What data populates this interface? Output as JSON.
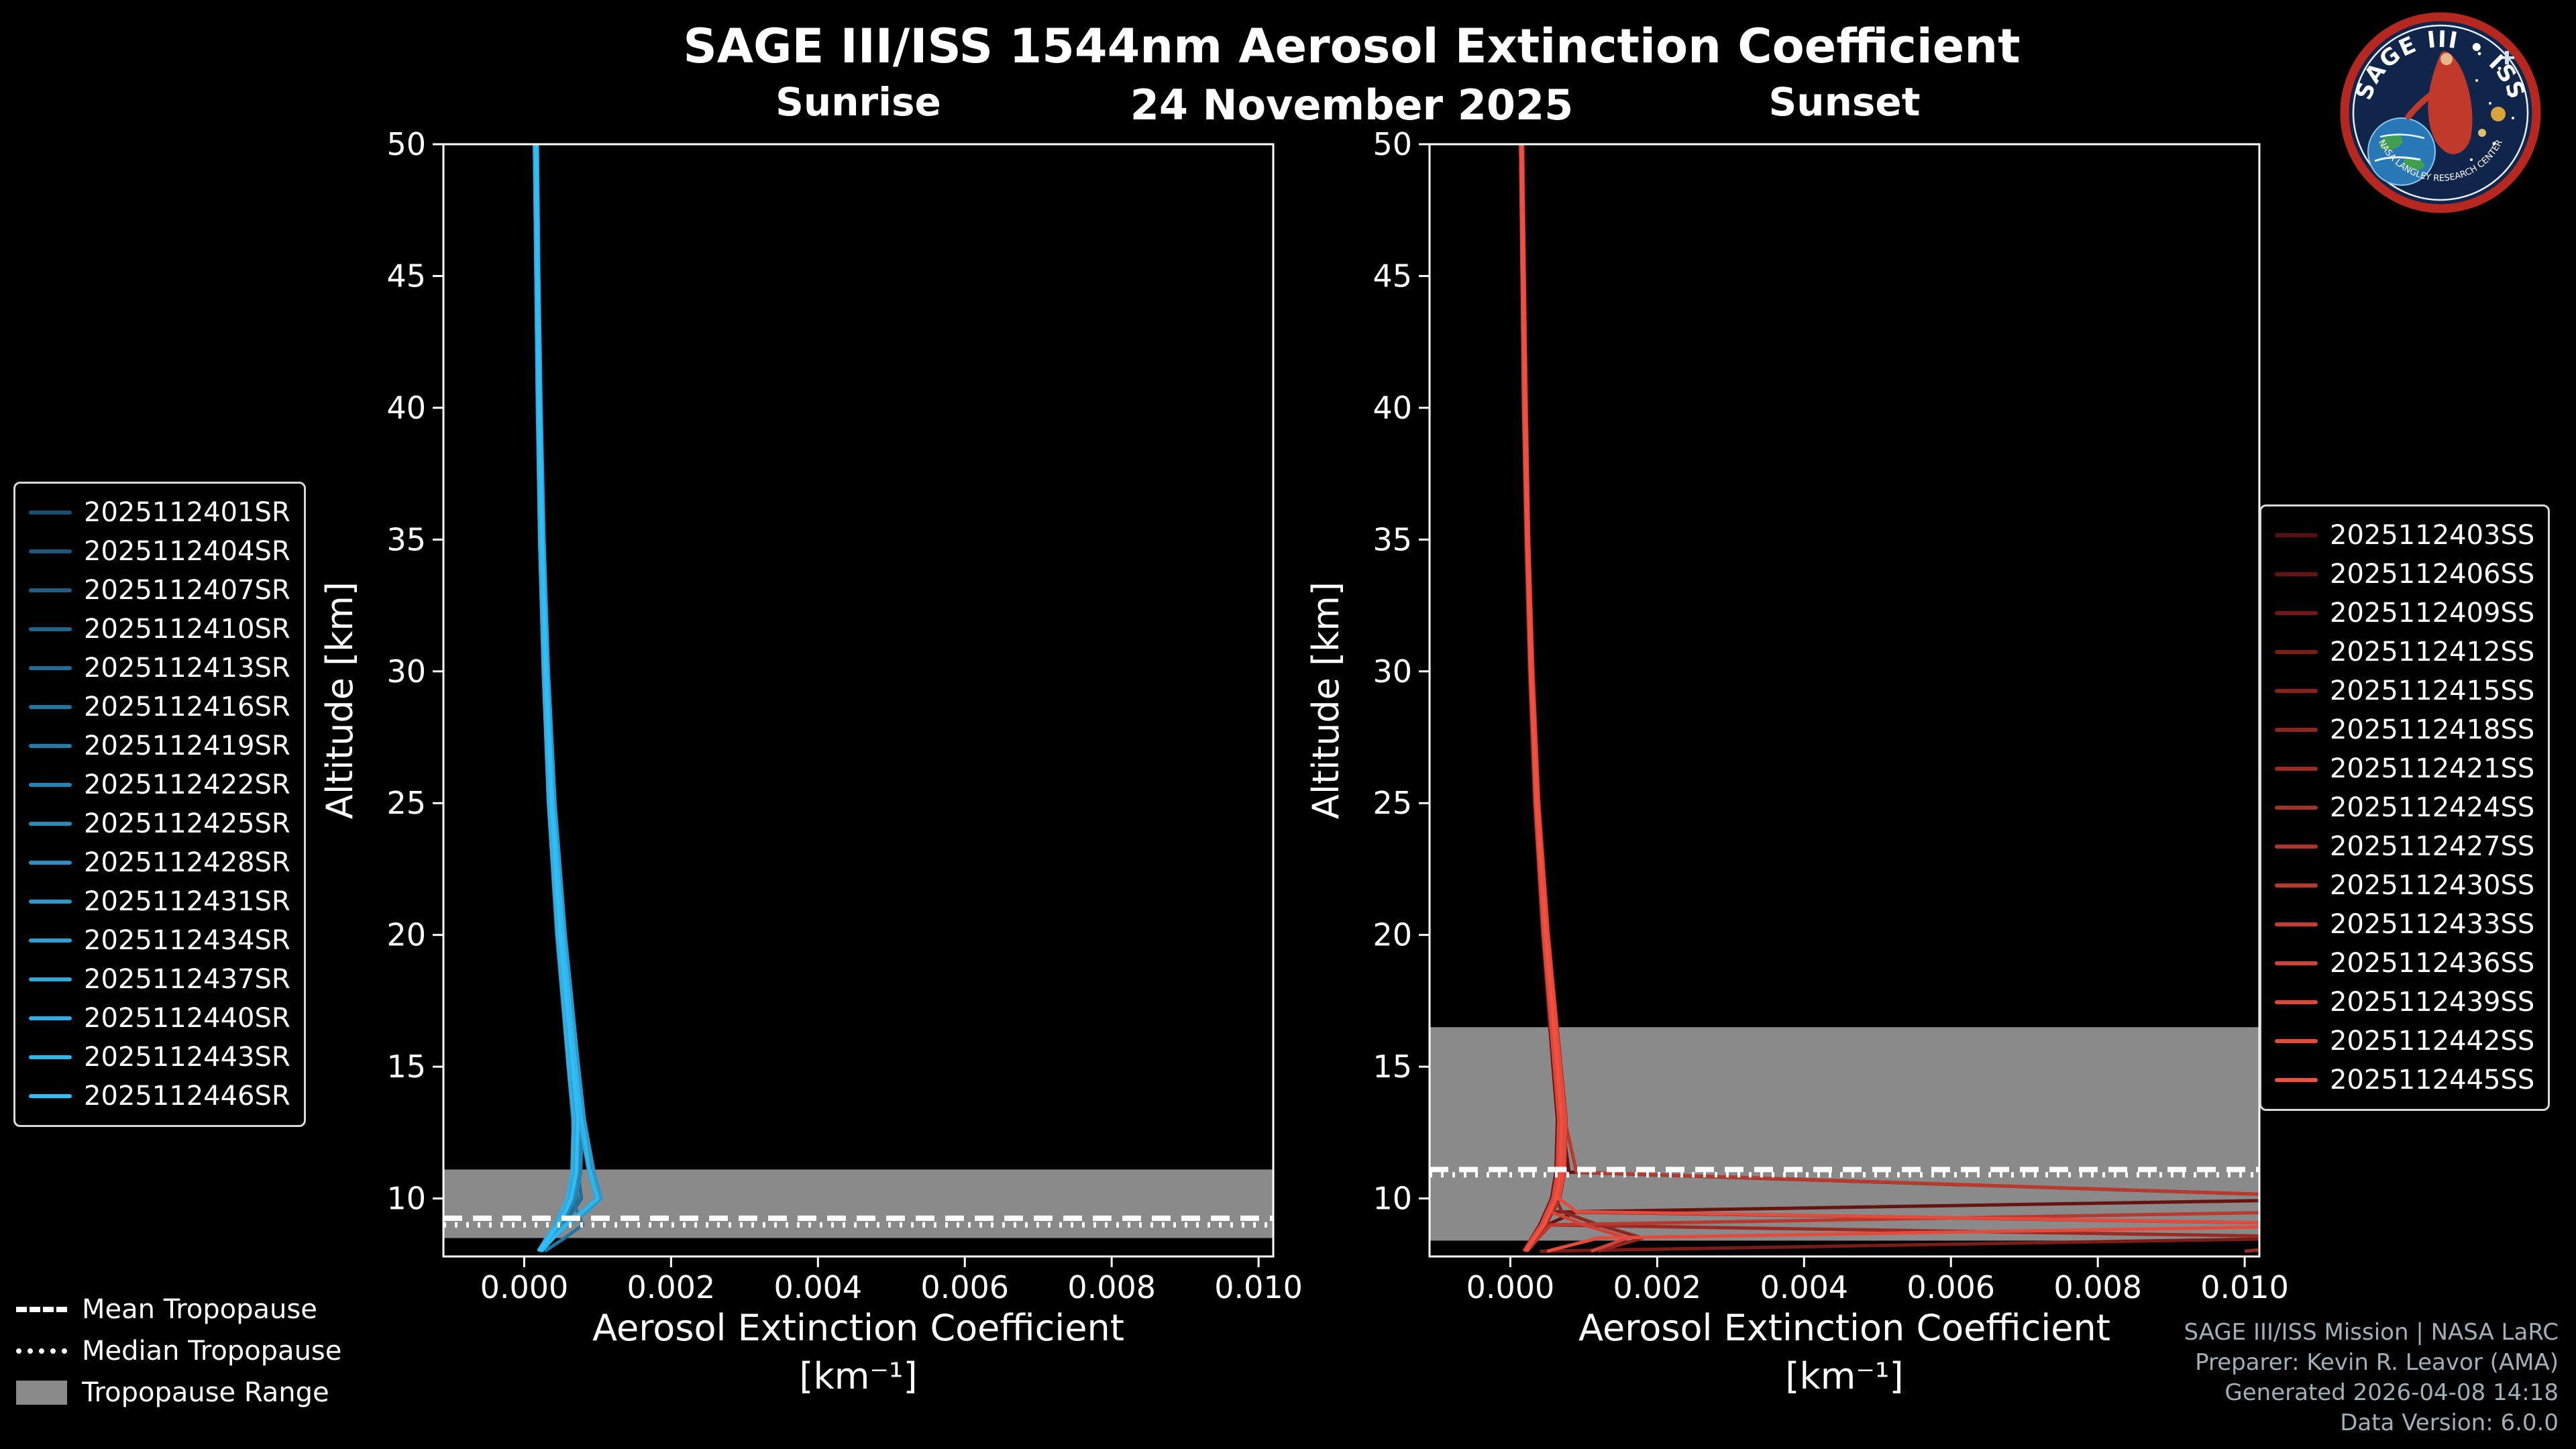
{
  "header": {
    "title": "SAGE III/ISS 1544nm Aerosol Extinction Coefficient",
    "date": "24 November 2025"
  },
  "logo": {
    "title": "SAGE III • ISS",
    "arc_bottom": "NASA LANGLEY RESEARCH CENTER"
  },
  "tropopause_legend": {
    "items": [
      {
        "style": "dashed",
        "label": "Mean Tropopause"
      },
      {
        "style": "dotted",
        "label": "Median Tropopause"
      },
      {
        "style": "patch",
        "label": "Tropopause Range"
      }
    ]
  },
  "footer": {
    "lines": [
      "SAGE III/ISS Mission | NASA LaRC",
      "Preparer: Kevin R. Leavor (AMA)",
      "Generated 2026-04-08 14:18",
      "Data Version: 6.0.0"
    ]
  },
  "chart_data": [
    {
      "id": "sunrise",
      "type": "line",
      "title": "Sunrise",
      "xlabel": "Aerosol Extinction Coefficient",
      "xlabel_units": "[km⁻¹]",
      "ylabel": "Altitude [km]",
      "xlim": [
        -0.0011,
        0.0102
      ],
      "ylim": [
        7.8,
        50
      ],
      "grid": false,
      "legend_position": "outside-left",
      "xticks": [
        0,
        0.002,
        0.004,
        0.006,
        0.008,
        0.01
      ],
      "xtick_labels": [
        "0.000",
        "0.002",
        "0.004",
        "0.006",
        "0.008",
        "0.010"
      ],
      "yticks": [
        10,
        15,
        20,
        25,
        30,
        35,
        40,
        45,
        50
      ],
      "ytick_labels": [
        "10",
        "15",
        "20",
        "25",
        "30",
        "35",
        "40",
        "45",
        "50"
      ],
      "tropopause": {
        "mean": 9.25,
        "median": 9.0,
        "range": [
          8.5,
          11.1
        ],
        "range_color": "#8a8a8a",
        "line_color": "#ffffff"
      },
      "altitudes": [
        50,
        45,
        40,
        35,
        30,
        25,
        20,
        15,
        13,
        11,
        10,
        9.5,
        9,
        8.5,
        8
      ],
      "series": [
        {
          "name": "2025112401SR",
          "color": "#1b4f72",
          "values": [
            0.00015,
            0.00017,
            0.00019,
            0.00022,
            0.00027,
            0.00034,
            0.00046,
            0.00062,
            0.00068,
            0.00066,
            0.00058,
            0.0005,
            0.00042,
            0.00031,
            0.0002
          ]
        },
        {
          "name": "2025112404SR",
          "color": "#1d567b",
          "values": [
            0.00016,
            0.00018,
            0.00021,
            0.00024,
            0.00029,
            0.00037,
            0.00049,
            0.00066,
            0.00072,
            0.0007,
            0.00064,
            0.00055,
            0.00046,
            0.00034,
            0.00022
          ]
        },
        {
          "name": "2025112407SR",
          "color": "#1e5e83",
          "values": [
            0.00014,
            0.00016,
            0.00018,
            0.00021,
            0.00026,
            0.00033,
            0.00044,
            0.0006,
            0.00066,
            0.00069,
            0.00072,
            0.00061,
            0.0005,
            0.00037,
            0.00024
          ]
        },
        {
          "name": "2025112410SR",
          "color": "#20658c",
          "values": [
            0.00017,
            0.00019,
            0.00022,
            0.00025,
            0.00031,
            0.00039,
            0.00052,
            0.0007,
            0.00077,
            0.00075,
            0.00068,
            0.00058,
            0.00048,
            0.00035,
            0.00021
          ]
        },
        {
          "name": "2025112413SR",
          "color": "#216c95",
          "values": [
            0.00015,
            0.00017,
            0.0002,
            0.00023,
            0.00028,
            0.00036,
            0.00048,
            0.00064,
            0.00071,
            0.00073,
            0.00078,
            0.00066,
            0.00052,
            0.00038,
            0.00023
          ]
        },
        {
          "name": "2025112416SR",
          "color": "#23749e",
          "values": [
            0.00016,
            0.00018,
            0.0002,
            0.00024,
            0.00029,
            0.00037,
            0.0005,
            0.00067,
            0.00074,
            0.00072,
            0.00065,
            0.00072,
            0.0008,
            0.00055,
            0.00028
          ]
        },
        {
          "name": "2025112419SR",
          "color": "#257ba6",
          "values": [
            0.00014,
            0.00016,
            0.00019,
            0.00022,
            0.00027,
            0.00034,
            0.00046,
            0.00062,
            0.00069,
            0.00067,
            0.0006,
            0.00052,
            0.00044,
            0.00032,
            0.0002
          ]
        },
        {
          "name": "2025112422SR",
          "color": "#2682af",
          "values": [
            0.00017,
            0.00019,
            0.00022,
            0.00026,
            0.00032,
            0.0004,
            0.00054,
            0.00072,
            0.00079,
            0.00077,
            0.0007,
            0.0006,
            0.0005,
            0.00036,
            0.00022
          ]
        },
        {
          "name": "2025112425SR",
          "color": "#288ab8",
          "values": [
            0.00015,
            0.00017,
            0.0002,
            0.00023,
            0.00028,
            0.00035,
            0.00047,
            0.00063,
            0.0007,
            0.00068,
            0.00062,
            0.00054,
            0.00045,
            0.00033,
            0.00021
          ]
        },
        {
          "name": "2025112428SR",
          "color": "#2991c1",
          "values": [
            0.00016,
            0.00018,
            0.00021,
            0.00024,
            0.0003,
            0.00038,
            0.00051,
            0.00068,
            0.00075,
            0.00073,
            0.00066,
            0.00057,
            0.00047,
            0.00034,
            0.00021
          ]
        },
        {
          "name": "2025112431SR",
          "color": "#2b98c9",
          "values": [
            0.00018,
            0.0002,
            0.00023,
            0.00027,
            0.00033,
            0.00042,
            0.00056,
            0.00074,
            0.00082,
            0.00095,
            0.00105,
            0.00085,
            0.0006,
            0.0004,
            0.00024
          ]
        },
        {
          "name": "2025112434SR",
          "color": "#2da0d2",
          "values": [
            0.00015,
            0.00017,
            0.00019,
            0.00022,
            0.00028,
            0.00035,
            0.00047,
            0.00063,
            0.0007,
            0.00068,
            0.00061,
            0.00053,
            0.00044,
            0.00032,
            0.0002
          ]
        },
        {
          "name": "2025112437SR",
          "color": "#2ea7db",
          "values": [
            0.00016,
            0.00018,
            0.00021,
            0.00025,
            0.0003,
            0.00038,
            0.00051,
            0.00068,
            0.00075,
            0.00088,
            0.00098,
            0.00078,
            0.00055,
            0.00038,
            0.00022
          ]
        },
        {
          "name": "2025112440SR",
          "color": "#30aee4",
          "values": [
            0.00014,
            0.00016,
            0.00018,
            0.00021,
            0.00026,
            0.00033,
            0.00045,
            0.0006,
            0.00067,
            0.00065,
            0.00058,
            0.0005,
            0.00042,
            0.0003,
            0.00019
          ]
        },
        {
          "name": "2025112443SR",
          "color": "#31b6ec",
          "values": [
            0.00017,
            0.00019,
            0.00022,
            0.00025,
            0.00031,
            0.00039,
            0.00053,
            0.0007,
            0.00078,
            0.0009,
            0.001,
            0.0008,
            0.00058,
            0.0004,
            0.00023
          ]
        },
        {
          "name": "2025112446SR",
          "color": "#33bdf5",
          "values": [
            0.00016,
            0.00018,
            0.0002,
            0.00024,
            0.00029,
            0.00037,
            0.00049,
            0.00066,
            0.00073,
            0.00071,
            0.00064,
            0.00056,
            0.00046,
            0.00033,
            0.00021
          ]
        }
      ]
    },
    {
      "id": "sunset",
      "type": "line",
      "title": "Sunset",
      "xlabel": "Aerosol Extinction Coefficient",
      "xlabel_units": "[km⁻¹]",
      "ylabel": "Altitude [km]",
      "xlim": [
        -0.0011,
        0.0102
      ],
      "ylim": [
        7.8,
        50
      ],
      "grid": false,
      "legend_position": "outside-right",
      "xticks": [
        0,
        0.002,
        0.004,
        0.006,
        0.008,
        0.01
      ],
      "xtick_labels": [
        "0.000",
        "0.002",
        "0.004",
        "0.006",
        "0.008",
        "0.010"
      ],
      "yticks": [
        10,
        15,
        20,
        25,
        30,
        35,
        40,
        45,
        50
      ],
      "ytick_labels": [
        "10",
        "15",
        "20",
        "25",
        "30",
        "35",
        "40",
        "45",
        "50"
      ],
      "tropopause": {
        "mean": 11.1,
        "median": 10.9,
        "range": [
          8.4,
          16.5
        ],
        "range_color": "#8a8a8a",
        "line_color": "#ffffff"
      },
      "altitudes": [
        50,
        45,
        40,
        35,
        30,
        25,
        20,
        15,
        13,
        11,
        10,
        9.5,
        9,
        8.5,
        8
      ],
      "series": [
        {
          "name": "2025112403SS",
          "color": "#5a0f0f",
          "values": [
            0.00015,
            0.00017,
            0.00019,
            0.00022,
            0.00027,
            0.00034,
            0.00045,
            0.0006,
            0.00066,
            0.00064,
            0.00058,
            0.0005,
            0.00042,
            0.0003,
            0.00019
          ]
        },
        {
          "name": "2025112406SS",
          "color": "#651412",
          "values": [
            0.00016,
            0.00018,
            0.0002,
            0.00023,
            0.00028,
            0.00036,
            0.00048,
            0.00064,
            0.0007,
            0.0008,
            0.012,
            0.0009,
            0.0005,
            0.00034,
            0.00021
          ]
        },
        {
          "name": "2025112409SS",
          "color": "#6f1816",
          "values": [
            0.00014,
            0.00016,
            0.00018,
            0.00021,
            0.00026,
            0.00033,
            0.00044,
            0.00058,
            0.00064,
            0.00062,
            0.00056,
            0.00048,
            0.0004,
            0.00029,
            0.00018
          ]
        },
        {
          "name": "2025112412SS",
          "color": "#7a1d19",
          "values": [
            0.00016,
            0.00018,
            0.00021,
            0.00024,
            0.00029,
            0.00037,
            0.00049,
            0.00066,
            0.00072,
            0.0007,
            0.00064,
            0.00055,
            0.012,
            0.011,
            0.0004
          ]
        },
        {
          "name": "2025112415SS",
          "color": "#85221d",
          "values": [
            0.00015,
            0.00017,
            0.00019,
            0.00022,
            0.00028,
            0.00035,
            0.00046,
            0.00062,
            0.00068,
            0.00066,
            0.0006,
            0.00052,
            0.00044,
            0.00031,
            0.0002
          ]
        },
        {
          "name": "2025112418SS",
          "color": "#902620",
          "values": [
            0.00016,
            0.00018,
            0.0002,
            0.00024,
            0.00029,
            0.00036,
            0.00048,
            0.00064,
            0.00071,
            0.00069,
            0.00062,
            0.0007,
            0.0012,
            0.0018,
            0.0012
          ]
        },
        {
          "name": "2025112421SS",
          "color": "#9a2b24",
          "values": [
            0.00014,
            0.00016,
            0.00019,
            0.00022,
            0.00027,
            0.00034,
            0.00045,
            0.00061,
            0.00067,
            0.00065,
            0.00059,
            0.00051,
            0.00043,
            0.012,
            0.01
          ]
        },
        {
          "name": "2025112424SS",
          "color": "#a53028",
          "values": [
            0.00017,
            0.00019,
            0.00022,
            0.00025,
            0.00031,
            0.00039,
            0.00052,
            0.00069,
            0.00076,
            0.00074,
            0.00067,
            0.00058,
            0.00048,
            0.00035,
            0.00022
          ]
        },
        {
          "name": "2025112427SS",
          "color": "#b0342b",
          "values": [
            0.00015,
            0.00017,
            0.0002,
            0.00023,
            0.00028,
            0.00036,
            0.00047,
            0.00063,
            0.00069,
            0.00067,
            0.00061,
            0.00053,
            0.00045,
            0.00032,
            0.0002
          ]
        },
        {
          "name": "2025112430SS",
          "color": "#ba392f",
          "values": [
            0.00016,
            0.00018,
            0.00021,
            0.00024,
            0.0003,
            0.00038,
            0.0005,
            0.00067,
            0.00074,
            0.0009,
            0.012,
            0.011,
            0.00055,
            0.00038,
            0.00023
          ]
        },
        {
          "name": "2025112433SS",
          "color": "#c53d32",
          "values": [
            0.00015,
            0.00017,
            0.00019,
            0.00023,
            0.00028,
            0.00035,
            0.00047,
            0.00062,
            0.00068,
            0.00066,
            0.0006,
            0.00052,
            0.00044,
            0.00031,
            0.00019
          ]
        },
        {
          "name": "2025112436SS",
          "color": "#d04236",
          "values": [
            0.00016,
            0.00018,
            0.0002,
            0.00024,
            0.00029,
            0.00037,
            0.00049,
            0.00065,
            0.00072,
            0.0007,
            0.00063,
            0.00055,
            0.001,
            0.0016,
            0.0011
          ]
        },
        {
          "name": "2025112439SS",
          "color": "#db4739",
          "values": [
            0.00014,
            0.00016,
            0.00018,
            0.00022,
            0.00027,
            0.00034,
            0.00045,
            0.0006,
            0.00066,
            0.00064,
            0.00058,
            0.0005,
            0.00042,
            0.0003,
            0.00019
          ]
        },
        {
          "name": "2025112442SS",
          "color": "#e54b3d",
          "values": [
            0.00016,
            0.00019,
            0.00021,
            0.00025,
            0.0003,
            0.00038,
            0.00051,
            0.00068,
            0.00075,
            0.00073,
            0.00066,
            0.0009,
            0.012,
            0.0012,
            0.0005
          ]
        },
        {
          "name": "2025112445SS",
          "color": "#f05040",
          "values": [
            0.00015,
            0.00017,
            0.0002,
            0.00023,
            0.00028,
            0.00036,
            0.00048,
            0.00064,
            0.0007,
            0.00068,
            0.00062,
            0.00054,
            0.00046,
            0.00033,
            0.00021
          ]
        }
      ]
    }
  ]
}
